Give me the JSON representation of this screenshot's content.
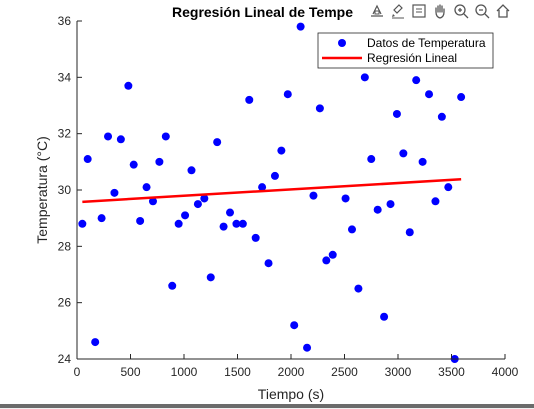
{
  "chart_data": {
    "type": "scatter",
    "title": "Regresión Lineal de Tempe",
    "xlabel": "Tiempo (s)",
    "ylabel": "Temperatura (°C)",
    "xlim": [
      0,
      4000
    ],
    "ylim": [
      24,
      36
    ],
    "xticks": [
      0,
      500,
      1000,
      1500,
      2000,
      2500,
      3000,
      3500,
      4000
    ],
    "yticks": [
      24,
      26,
      28,
      30,
      32,
      34,
      36
    ],
    "grid": false,
    "legend_position": "top-right",
    "series": [
      {
        "name": "Datos de Temperatura",
        "kind": "scatter",
        "color": "#0000ff",
        "points": [
          [
            50,
            28.8
          ],
          [
            100,
            31.1
          ],
          [
            170,
            24.6
          ],
          [
            230,
            29.0
          ],
          [
            290,
            31.9
          ],
          [
            350,
            29.9
          ],
          [
            410,
            31.8
          ],
          [
            480,
            33.7
          ],
          [
            530,
            30.9
          ],
          [
            590,
            28.9
          ],
          [
            650,
            30.1
          ],
          [
            710,
            29.6
          ],
          [
            770,
            31.0
          ],
          [
            830,
            31.9
          ],
          [
            890,
            26.6
          ],
          [
            950,
            28.8
          ],
          [
            1010,
            29.1
          ],
          [
            1070,
            30.7
          ],
          [
            1130,
            29.5
          ],
          [
            1190,
            29.7
          ],
          [
            1250,
            26.9
          ],
          [
            1310,
            31.7
          ],
          [
            1370,
            28.7
          ],
          [
            1430,
            29.2
          ],
          [
            1490,
            28.8
          ],
          [
            1550,
            28.8
          ],
          [
            1610,
            33.2
          ],
          [
            1670,
            28.3
          ],
          [
            1730,
            30.1
          ],
          [
            1790,
            27.4
          ],
          [
            1850,
            30.5
          ],
          [
            1910,
            31.4
          ],
          [
            1970,
            33.4
          ],
          [
            2030,
            25.2
          ],
          [
            2090,
            35.8
          ],
          [
            2150,
            24.4
          ],
          [
            2210,
            29.8
          ],
          [
            2270,
            32.9
          ],
          [
            2330,
            27.5
          ],
          [
            2390,
            27.7
          ],
          [
            2510,
            29.7
          ],
          [
            2570,
            28.6
          ],
          [
            2630,
            26.5
          ],
          [
            2690,
            34.0
          ],
          [
            2750,
            31.1
          ],
          [
            2810,
            29.3
          ],
          [
            2870,
            25.5
          ],
          [
            2930,
            29.5
          ],
          [
            2990,
            32.7
          ],
          [
            3050,
            31.3
          ],
          [
            3110,
            28.5
          ],
          [
            3170,
            33.9
          ],
          [
            3230,
            31.0
          ],
          [
            3290,
            33.4
          ],
          [
            3350,
            29.6
          ],
          [
            3410,
            32.6
          ],
          [
            3470,
            30.1
          ],
          [
            3530,
            24.0
          ],
          [
            3590,
            33.3
          ]
        ]
      },
      {
        "name": "Regresión Lineal",
        "kind": "line",
        "color": "#ff0000",
        "points": [
          [
            50,
            29.58
          ],
          [
            3590,
            30.38
          ]
        ]
      }
    ]
  },
  "toolbar": {
    "icons": [
      "export-icon",
      "brush-icon",
      "datatip-icon",
      "pan-icon",
      "zoom-in-icon",
      "zoom-out-icon",
      "home-icon"
    ]
  }
}
